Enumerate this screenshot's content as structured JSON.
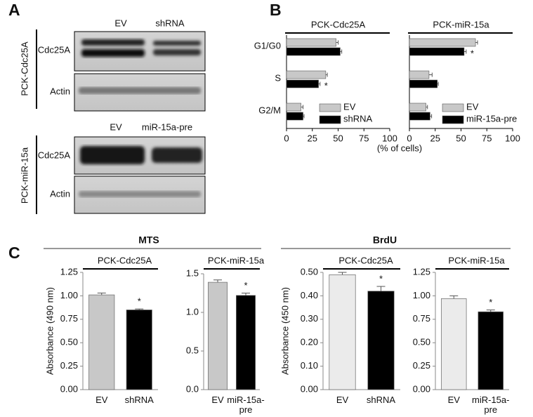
{
  "figure": {
    "panel_labels": [
      "A",
      "B",
      "C"
    ],
    "blots": [
      {
        "cell_line": "PCK-Cdc25A",
        "lanes": [
          "EV",
          "shRNA"
        ],
        "rows": [
          "Cdc25A",
          "Actin"
        ]
      },
      {
        "cell_line": "PCK-miR-15a",
        "lanes": [
          "EV",
          "miR-15a-pre"
        ],
        "rows": [
          "Cdc25A",
          "Actin"
        ]
      }
    ],
    "assay_groups": [
      "MTS",
      "BrdU"
    ]
  },
  "chart_data": [
    {
      "type": "hbar",
      "title": "PCK-Cdc25A",
      "categories": [
        "G1/G0",
        "S",
        "G2/M"
      ],
      "series": [
        {
          "name": "EV",
          "color": "#c8c8c8",
          "values": [
            48,
            38,
            14
          ],
          "errors": [
            2,
            1.5,
            2
          ]
        },
        {
          "name": "shRNA",
          "color": "#000000",
          "values": [
            52,
            31,
            16
          ],
          "errors": [
            1.5,
            1.5,
            1
          ],
          "significance": [
            null,
            "*",
            null
          ]
        }
      ],
      "xlim": [
        0,
        100
      ],
      "xticks": [
        0,
        25,
        50,
        75,
        100
      ],
      "x_label": "(% of cells)",
      "legend": "lower right"
    },
    {
      "type": "hbar",
      "title": "PCK-miR-15a",
      "series": [
        {
          "name": "EV",
          "color": "#c8c8c8",
          "values": [
            64,
            19,
            16
          ],
          "errors": [
            2,
            3,
            1.5
          ]
        },
        {
          "name": "miR-15a-pre",
          "color": "#000000",
          "values": [
            53,
            27,
            20
          ],
          "errors": [
            2,
            1,
            1.5
          ],
          "significance": [
            "*",
            null,
            null
          ]
        }
      ],
      "xlim": [
        0,
        100
      ],
      "xticks": [
        0,
        25,
        50,
        75,
        100
      ],
      "legend": "lower right"
    },
    {
      "type": "bar",
      "title": "PCK-Cdc25A",
      "categories": [
        "EV",
        "shRNA"
      ],
      "values": [
        1.01,
        0.85
      ],
      "errors": [
        0.02,
        0.01
      ],
      "colors": [
        "#c8c8c8",
        "#000000"
      ],
      "significance": [
        null,
        "*"
      ],
      "ylim": [
        0,
        1.25
      ],
      "yticks": [
        {
          "value": 0,
          "label": "0.00"
        },
        {
          "value": 0.25,
          "label": "0.25"
        },
        {
          "value": 0.5,
          "label": "0.50"
        },
        {
          "value": 0.75,
          "label": "0.75"
        },
        {
          "value": 1,
          "label": "1.00"
        },
        {
          "value": 1.25,
          "label": "1.25"
        }
      ],
      "y_label": "Absorbance (490 nm)"
    },
    {
      "type": "bar",
      "title": "PCK-miR-15a",
      "categories": [
        "EV",
        "miR-15a-pre"
      ],
      "values": [
        1.39,
        1.22
      ],
      "errors": [
        0.03,
        0.03
      ],
      "colors": [
        "#c8c8c8",
        "#000000"
      ],
      "significance": [
        null,
        "*"
      ],
      "ylim": [
        0,
        1.5
      ],
      "yticks": [
        {
          "value": 0,
          "label": "0.0"
        },
        {
          "value": 0.5,
          "label": "0.5"
        },
        {
          "value": 1,
          "label": "1.0"
        },
        {
          "value": 1.5,
          "label": "1.5"
        }
      ]
    },
    {
      "type": "bar",
      "title": "PCK-Cdc25A",
      "categories": [
        "EV",
        "shRNA"
      ],
      "values": [
        0.49,
        0.42
      ],
      "errors": [
        0.01,
        0.02
      ],
      "colors": [
        "#ebebeb",
        "#000000"
      ],
      "significance": [
        null,
        "*"
      ],
      "ylim": [
        0,
        0.5
      ],
      "yticks": [
        {
          "value": 0,
          "label": "0.00"
        },
        {
          "value": 0.1,
          "label": "0.10"
        },
        {
          "value": 0.2,
          "label": "0.20"
        },
        {
          "value": 0.3,
          "label": "0.30"
        },
        {
          "value": 0.4,
          "label": "0.40"
        },
        {
          "value": 0.5,
          "label": "0.50"
        }
      ],
      "y_label": "Absorbance (450 nm)"
    },
    {
      "type": "bar",
      "title": "PCK-miR-15a",
      "categories": [
        "EV",
        "miR-15a-pre"
      ],
      "values": [
        0.97,
        0.83
      ],
      "errors": [
        0.03,
        0.02
      ],
      "colors": [
        "#ebebeb",
        "#000000"
      ],
      "significance": [
        null,
        "*"
      ],
      "ylim": [
        0,
        1.25
      ],
      "yticks": [
        {
          "value": 0,
          "label": "0.00"
        },
        {
          "value": 0.25,
          "label": "0.25"
        },
        {
          "value": 0.5,
          "label": "0.50"
        },
        {
          "value": 0.75,
          "label": "0.75"
        },
        {
          "value": 1,
          "label": "1.00"
        },
        {
          "value": 1.25,
          "label": "1.25"
        }
      ]
    }
  ]
}
